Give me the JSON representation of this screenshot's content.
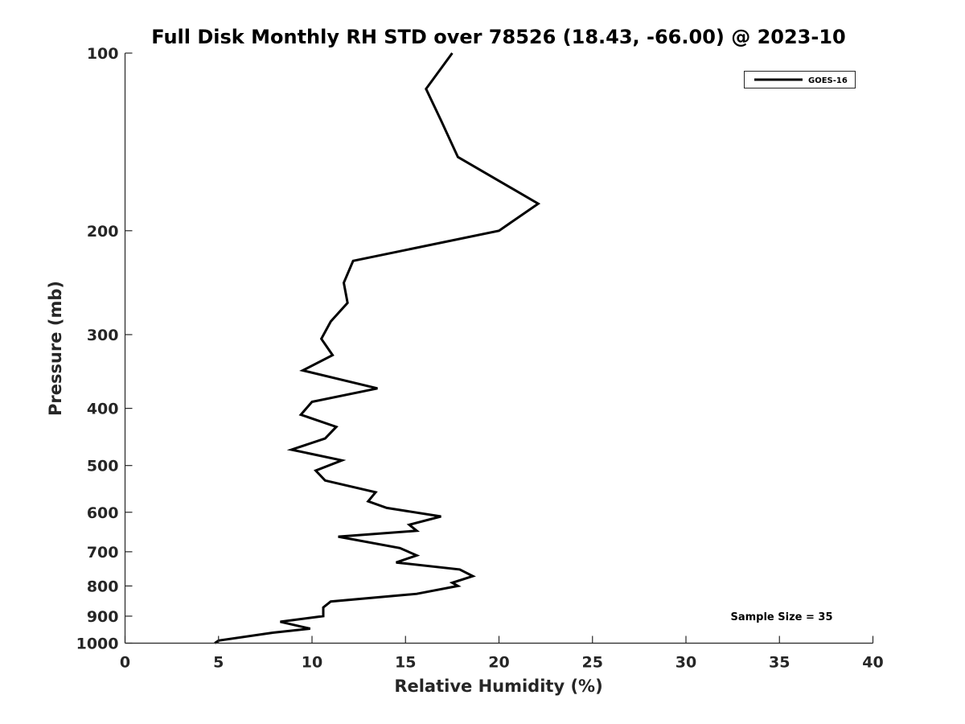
{
  "chart_data": {
    "type": "line",
    "title": "Full Disk Monthly RH STD over 78526 (18.43, -66.00) @ 2023-10",
    "xlabel": "Relative Humidity (%)",
    "ylabel": "Pressure (mb)",
    "xlim": [
      0,
      40
    ],
    "ylim": [
      100,
      1000
    ],
    "y_scale": "log",
    "y_reversed": true,
    "x_ticks": [
      "0",
      "5",
      "10",
      "15",
      "20",
      "25",
      "30",
      "35",
      "40"
    ],
    "y_ticks": [
      "100",
      "200",
      "300",
      "400",
      "500",
      "600",
      "700",
      "800",
      "900",
      "1000"
    ],
    "grid": false,
    "legend_position": "top-right",
    "annotation": "Sample Size = 35",
    "series": [
      {
        "name": "GOES-16",
        "color": "#000000",
        "points": [
          [
            17.5,
            100
          ],
          [
            16.1,
            115
          ],
          [
            16.9,
            130
          ],
          [
            17.8,
            150
          ],
          [
            22.1,
            180
          ],
          [
            20.0,
            200
          ],
          [
            12.2,
            225
          ],
          [
            11.7,
            245
          ],
          [
            11.9,
            265
          ],
          [
            11.0,
            285
          ],
          [
            10.5,
            305
          ],
          [
            11.1,
            325
          ],
          [
            9.5,
            345
          ],
          [
            13.5,
            370
          ],
          [
            10.0,
            390
          ],
          [
            9.4,
            410
          ],
          [
            11.3,
            430
          ],
          [
            10.7,
            450
          ],
          [
            8.9,
            470
          ],
          [
            11.6,
            490
          ],
          [
            10.2,
            510
          ],
          [
            10.7,
            530
          ],
          [
            13.4,
            555
          ],
          [
            13.0,
            575
          ],
          [
            14.0,
            590
          ],
          [
            16.9,
            610
          ],
          [
            15.2,
            630
          ],
          [
            15.6,
            645
          ],
          [
            11.4,
            660
          ],
          [
            14.7,
            690
          ],
          [
            15.6,
            710
          ],
          [
            14.5,
            730
          ],
          [
            17.9,
            750
          ],
          [
            18.6,
            770
          ],
          [
            17.5,
            790
          ],
          [
            17.8,
            800
          ],
          [
            15.6,
            825
          ],
          [
            11.0,
            850
          ],
          [
            10.6,
            870
          ],
          [
            10.6,
            890
          ],
          [
            10.6,
            900
          ],
          [
            8.3,
            920
          ],
          [
            9.9,
            945
          ],
          [
            7.9,
            960
          ],
          [
            5.0,
            990
          ],
          [
            4.8,
            1000
          ]
        ]
      }
    ]
  }
}
